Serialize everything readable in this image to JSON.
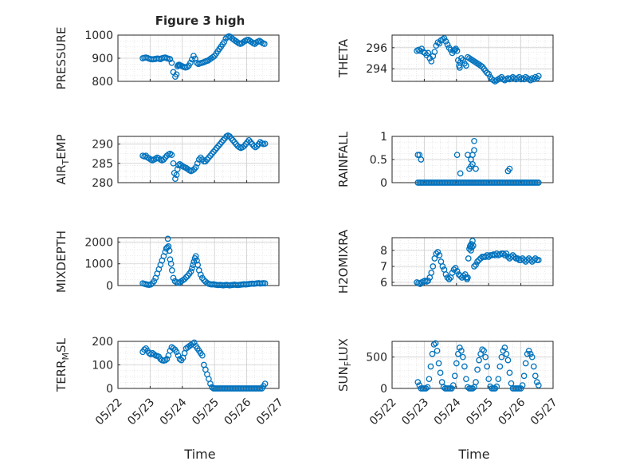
{
  "figure_title": "Figure 3 high",
  "x_label": "Time",
  "x_ticks": [
    "05/22",
    "05/23",
    "05/24",
    "05/25",
    "05/26",
    "05/27"
  ],
  "marker_color": "#0072BD",
  "chart_data": [
    {
      "type": "scatter",
      "id": "pressure",
      "ylabel": "PRESSURE",
      "ylim": [
        800,
        1000
      ],
      "yticks": [
        "800",
        "900",
        "1000"
      ],
      "grid": true,
      "x": [
        0.77,
        0.82,
        0.87,
        0.92,
        0.97,
        1.02,
        1.07,
        1.12,
        1.17,
        1.22,
        1.27,
        1.32,
        1.37,
        1.42,
        1.47,
        1.52,
        1.57,
        1.62,
        1.67,
        1.72,
        1.78,
        1.82,
        1.85,
        1.87,
        1.9,
        1.92,
        1.95,
        2.0,
        2.05,
        2.1,
        2.15,
        2.2,
        2.25,
        2.3,
        2.35,
        2.4,
        2.45,
        2.5,
        2.55,
        2.6,
        2.65,
        2.7,
        2.75,
        2.8,
        2.85,
        2.9,
        2.95,
        3.0,
        3.05,
        3.1,
        3.15,
        3.2,
        3.25,
        3.3,
        3.35,
        3.4,
        3.45,
        3.5,
        3.55,
        3.6,
        3.65,
        3.7,
        3.75,
        3.8,
        3.85,
        3.9,
        3.95,
        4.0,
        4.05,
        4.1,
        4.15,
        4.2,
        4.25,
        4.3,
        4.35,
        4.4,
        4.45,
        4.5,
        4.55
      ],
      "y": [
        900,
        902,
        903,
        901,
        898,
        896,
        895,
        896,
        897,
        899,
        898,
        896,
        900,
        902,
        903,
        900,
        898,
        896,
        880,
        840,
        820,
        830,
        865,
        870,
        872,
        870,
        868,
        865,
        862,
        860,
        862,
        868,
        880,
        895,
        910,
        898,
        880,
        875,
        878,
        880,
        882,
        885,
        888,
        890,
        895,
        900,
        905,
        910,
        920,
        930,
        940,
        950,
        960,
        970,
        985,
        992,
        995,
        992,
        985,
        980,
        975,
        970,
        965,
        962,
        965,
        970,
        975,
        978,
        980,
        975,
        970,
        965,
        962,
        968,
        972,
        975,
        970,
        965,
        962
      ]
    },
    {
      "type": "scatter",
      "id": "theta",
      "ylabel": "THETA",
      "ylim": [
        292.8,
        297.2
      ],
      "yticks": [
        "294",
        "296"
      ],
      "grid": true,
      "x": [
        0.77,
        0.82,
        0.87,
        0.92,
        0.97,
        1.02,
        1.07,
        1.12,
        1.17,
        1.22,
        1.27,
        1.32,
        1.37,
        1.42,
        1.47,
        1.52,
        1.57,
        1.62,
        1.67,
        1.72,
        1.77,
        1.82,
        1.87,
        1.92,
        1.95,
        1.98,
        2.02,
        2.05,
        2.08,
        2.1,
        2.12,
        2.15,
        2.2,
        2.25,
        2.3,
        2.35,
        2.4,
        2.45,
        2.5,
        2.55,
        2.6,
        2.65,
        2.7,
        2.75,
        2.8,
        2.85,
        2.9,
        2.95,
        3.0,
        3.05,
        3.1,
        3.15,
        3.2,
        3.25,
        3.3,
        3.35,
        3.4,
        3.45,
        3.5,
        3.55,
        3.6,
        3.65,
        3.7,
        3.75,
        3.8,
        3.85,
        3.9,
        3.95,
        4.0,
        4.05,
        4.1,
        4.15,
        4.2,
        4.25,
        4.3,
        4.35,
        4.4,
        4.45,
        4.5,
        4.55
      ],
      "y": [
        295.7,
        295.8,
        295.7,
        295.9,
        295.6,
        295.5,
        295.3,
        295.5,
        295.0,
        294.7,
        295.2,
        295.6,
        296.2,
        296.5,
        296.4,
        296.7,
        296.8,
        296.9,
        296.6,
        296.3,
        296.0,
        295.8,
        295.5,
        295.7,
        295.8,
        295.9,
        295.7,
        294.8,
        294.3,
        294.1,
        294.6,
        295.0,
        294.8,
        294.5,
        294.3,
        295.1,
        295.0,
        294.9,
        294.8,
        294.7,
        294.6,
        294.5,
        294.4,
        294.3,
        294.2,
        294.0,
        293.8,
        293.6,
        293.5,
        293.2,
        293.0,
        292.9,
        292.8,
        292.9,
        293.0,
        293.1,
        293.2,
        293.0,
        292.9,
        293.0,
        293.1,
        293.0,
        293.1,
        293.2,
        293.1,
        293.0,
        293.1,
        293.2,
        293.0,
        293.1,
        293.0,
        293.2,
        293.1,
        293.0,
        292.9,
        293.1,
        293.0,
        293.2,
        293.1,
        293.3
      ]
    },
    {
      "type": "scatter",
      "id": "air_temp",
      "ylabel_main": "AIR",
      "ylabel_sub": "T",
      "ylabel_rest": "EMP",
      "ylim": [
        280,
        292
      ],
      "yticks": [
        "280",
        "285",
        "290"
      ],
      "grid": true,
      "x": [
        0.77,
        0.82,
        0.87,
        0.92,
        0.97,
        1.02,
        1.07,
        1.12,
        1.17,
        1.22,
        1.27,
        1.32,
        1.37,
        1.42,
        1.47,
        1.52,
        1.57,
        1.62,
        1.67,
        1.72,
        1.75,
        1.78,
        1.82,
        1.85,
        1.88,
        1.92,
        1.97,
        2.02,
        2.07,
        2.12,
        2.17,
        2.22,
        2.27,
        2.32,
        2.37,
        2.42,
        2.47,
        2.52,
        2.57,
        2.62,
        2.67,
        2.72,
        2.77,
        2.82,
        2.87,
        2.92,
        2.97,
        3.02,
        3.07,
        3.12,
        3.17,
        3.22,
        3.27,
        3.32,
        3.37,
        3.42,
        3.47,
        3.52,
        3.57,
        3.62,
        3.67,
        3.72,
        3.77,
        3.82,
        3.87,
        3.92,
        3.97,
        4.02,
        4.07,
        4.12,
        4.17,
        4.22,
        4.27,
        4.32,
        4.37,
        4.42,
        4.47,
        4.52,
        4.57
      ],
      "y": [
        287,
        286.8,
        287,
        286.5,
        286.3,
        286,
        285.8,
        286,
        286.2,
        286.5,
        286.3,
        286,
        285.8,
        286,
        286.5,
        287,
        287.3,
        287.5,
        287.2,
        285,
        282.5,
        281,
        282,
        283.5,
        284.5,
        284.8,
        284.5,
        284.2,
        284,
        283.8,
        283.5,
        283.2,
        283,
        283.2,
        283.5,
        284,
        285,
        286,
        286.5,
        286,
        285.5,
        285.5,
        286,
        286.5,
        287,
        287.5,
        288,
        288.5,
        289,
        289.5,
        290,
        290.5,
        291,
        291.5,
        292,
        292.2,
        292,
        291.5,
        291,
        290.5,
        290,
        289.5,
        289.2,
        289,
        289.2,
        289.5,
        290,
        290.5,
        291,
        290.5,
        290,
        289.5,
        289.2,
        289.5,
        290,
        290.5,
        290.2,
        290,
        290.1
      ]
    },
    {
      "type": "scatter",
      "id": "rainfall",
      "ylabel": "RAINFALL",
      "ylim": [
        0,
        1
      ],
      "yticks": [
        "0",
        "0.5",
        "1"
      ],
      "grid": true,
      "x": [
        0.8,
        0.85,
        0.9,
        0.95,
        1.0,
        1.05,
        1.1,
        1.15,
        1.2,
        1.25,
        1.3,
        1.35,
        1.4,
        1.45,
        1.5,
        1.55,
        1.6,
        1.65,
        1.7,
        1.75,
        1.8,
        1.85,
        1.9,
        1.95,
        2.0,
        2.05,
        2.1,
        2.15,
        2.2,
        2.25,
        2.3,
        2.35,
        2.4,
        2.45,
        2.5,
        2.55,
        2.6,
        2.65,
        2.7,
        2.75,
        2.8,
        2.85,
        2.9,
        2.95,
        3.0,
        3.05,
        3.1,
        3.15,
        3.2,
        3.25,
        3.3,
        3.35,
        3.4,
        3.45,
        3.5,
        3.55,
        3.6,
        3.65,
        3.7,
        3.75,
        3.8,
        3.85,
        3.9,
        3.95,
        4.0,
        4.05,
        4.1,
        4.15,
        4.2,
        4.25,
        4.3,
        4.35,
        4.4,
        4.45,
        4.5,
        4.55,
        0.8,
        0.85,
        0.9,
        2.02,
        2.12,
        2.35,
        2.4,
        2.45,
        2.45,
        2.5,
        2.5,
        2.55,
        2.55,
        2.6,
        3.6,
        3.65
      ],
      "y": [
        0,
        0,
        0,
        0,
        0,
        0,
        0,
        0,
        0,
        0,
        0,
        0,
        0,
        0,
        0,
        0,
        0,
        0,
        0,
        0,
        0,
        0,
        0,
        0,
        0,
        0,
        0,
        0,
        0,
        0,
        0,
        0,
        0,
        0,
        0,
        0,
        0,
        0,
        0,
        0,
        0,
        0,
        0,
        0,
        0,
        0,
        0,
        0,
        0,
        0,
        0,
        0,
        0,
        0,
        0,
        0,
        0,
        0,
        0,
        0,
        0,
        0,
        0,
        0,
        0,
        0,
        0,
        0,
        0,
        0,
        0,
        0,
        0,
        0,
        0,
        0,
        0.6,
        0.6,
        0.5,
        0.6,
        0.2,
        0.6,
        0.3,
        0.35,
        0.5,
        0.6,
        0.4,
        0.9,
        0.7,
        0.3,
        0.25,
        0.3
      ]
    },
    {
      "type": "scatter",
      "id": "mixdepth",
      "ylabel": "MIXDEPTH",
      "ylim": [
        0,
        2200
      ],
      "yticks": [
        "0",
        "1000",
        "2000"
      ],
      "grid": true,
      "x": [
        0.77,
        0.82,
        0.87,
        0.92,
        0.97,
        1.02,
        1.07,
        1.12,
        1.17,
        1.22,
        1.27,
        1.32,
        1.37,
        1.42,
        1.47,
        1.5,
        1.53,
        1.55,
        1.57,
        1.6,
        1.62,
        1.65,
        1.68,
        1.72,
        1.77,
        1.82,
        1.87,
        1.92,
        1.97,
        2.02,
        2.07,
        2.12,
        2.17,
        2.22,
        2.27,
        2.3,
        2.33,
        2.36,
        2.39,
        2.42,
        2.45,
        2.48,
        2.52,
        2.57,
        2.62,
        2.67,
        2.72,
        2.77,
        2.82,
        2.87,
        2.92,
        2.97,
        3.02,
        3.07,
        3.12,
        3.17,
        3.22,
        3.27,
        3.32,
        3.37,
        3.42,
        3.47,
        3.52,
        3.57,
        3.62,
        3.67,
        3.72,
        3.77,
        3.82,
        3.87,
        3.92,
        3.97,
        4.02,
        4.07,
        4.12,
        4.17,
        4.22,
        4.27,
        4.32,
        4.37,
        4.42,
        4.47,
        4.52,
        4.57
      ],
      "y": [
        100,
        80,
        60,
        40,
        30,
        50,
        100,
        200,
        350,
        550,
        750,
        950,
        1150,
        1350,
        1550,
        1700,
        1750,
        2150,
        1800,
        1600,
        1200,
        1000,
        700,
        350,
        200,
        150,
        120,
        150,
        200,
        250,
        300,
        380,
        450,
        550,
        650,
        800,
        950,
        1100,
        1250,
        1350,
        1150,
        950,
        700,
        500,
        350,
        250,
        180,
        120,
        80,
        60,
        50,
        60,
        40,
        30,
        20,
        30,
        20,
        10,
        20,
        30,
        20,
        10,
        20,
        30,
        40,
        30,
        20,
        30,
        40,
        50,
        60,
        50,
        60,
        70,
        80,
        90,
        80,
        90,
        100,
        110,
        90,
        100,
        110,
        100
      ]
    },
    {
      "type": "scatter",
      "id": "h2omixra",
      "ylabel": "H2OMIXRA",
      "ylim": [
        5.8,
        8.8
      ],
      "yticks": [
        "6",
        "7",
        "8"
      ],
      "grid": true,
      "x": [
        0.77,
        0.82,
        0.87,
        0.92,
        0.97,
        1.02,
        1.07,
        1.12,
        1.17,
        1.22,
        1.27,
        1.32,
        1.37,
        1.42,
        1.47,
        1.52,
        1.57,
        1.62,
        1.67,
        1.72,
        1.77,
        1.82,
        1.87,
        1.92,
        1.97,
        2.02,
        2.07,
        2.12,
        2.17,
        2.22,
        2.27,
        2.3,
        2.33,
        2.35,
        2.37,
        2.4,
        2.43,
        2.46,
        2.5,
        2.55,
        2.6,
        2.65,
        2.7,
        2.75,
        2.8,
        2.85,
        2.9,
        2.95,
        3.0,
        3.05,
        3.1,
        3.15,
        3.2,
        3.25,
        3.3,
        3.35,
        3.4,
        3.45,
        3.5,
        3.55,
        3.6,
        3.65,
        3.7,
        3.75,
        3.8,
        3.85,
        3.9,
        3.95,
        4.0,
        4.05,
        4.1,
        4.15,
        4.2,
        4.25,
        4.3,
        4.35,
        4.4,
        4.45,
        4.5,
        4.55,
        2.48,
        2.52,
        2.42,
        2.45
      ],
      "y": [
        6.0,
        5.95,
        5.9,
        6.0,
        6.05,
        6.1,
        6.05,
        6.1,
        6.3,
        6.6,
        7.0,
        7.5,
        7.8,
        7.9,
        7.7,
        7.3,
        7.0,
        6.8,
        6.5,
        6.3,
        6.2,
        6.3,
        6.6,
        6.8,
        6.9,
        6.7,
        6.5,
        6.4,
        6.3,
        6.4,
        6.5,
        6.3,
        6.2,
        6.3,
        7.5,
        8.1,
        8.3,
        8.4,
        8.6,
        7.0,
        7.1,
        7.3,
        7.4,
        7.5,
        7.6,
        7.6,
        7.6,
        7.7,
        7.6,
        7.7,
        7.7,
        7.75,
        7.7,
        7.8,
        7.7,
        7.75,
        7.8,
        7.8,
        7.7,
        7.8,
        7.6,
        7.5,
        7.6,
        7.7,
        7.6,
        7.5,
        7.5,
        7.4,
        7.4,
        7.5,
        7.4,
        7.3,
        7.4,
        7.5,
        7.4,
        7.3,
        7.4,
        7.5,
        7.4,
        7.4,
        8.2,
        8.3,
        8.25,
        8.0
      ]
    },
    {
      "type": "scatter",
      "id": "terr_msl",
      "ylabel_main": "TERR",
      "ylabel_sub": "M",
      "ylabel_rest": "SL",
      "ylim": [
        0,
        200
      ],
      "yticks": [
        "0",
        "100",
        "200"
      ],
      "grid": true,
      "x": [
        0.77,
        0.82,
        0.87,
        0.92,
        0.97,
        1.02,
        1.07,
        1.12,
        1.17,
        1.22,
        1.27,
        1.32,
        1.37,
        1.42,
        1.47,
        1.52,
        1.57,
        1.62,
        1.67,
        1.72,
        1.77,
        1.82,
        1.87,
        1.92,
        1.97,
        2.02,
        2.07,
        2.12,
        2.17,
        2.22,
        2.27,
        2.32,
        2.37,
        2.42,
        2.47,
        2.52,
        2.57,
        2.62,
        2.67,
        2.72,
        2.77,
        2.82,
        2.87,
        2.92,
        2.97,
        3.02,
        3.07,
        3.12,
        3.17,
        3.22,
        3.27,
        3.32,
        3.37,
        3.42,
        3.47,
        3.52,
        3.57,
        3.62,
        3.67,
        3.72,
        3.77,
        3.82,
        3.87,
        3.92,
        3.97,
        4.02,
        4.07,
        4.12,
        4.17,
        4.22,
        4.27,
        4.32,
        4.37,
        4.42,
        4.47,
        4.52,
        4.57
      ],
      "y": [
        155,
        165,
        170,
        160,
        150,
        145,
        150,
        145,
        140,
        138,
        135,
        125,
        120,
        118,
        120,
        125,
        140,
        160,
        175,
        170,
        165,
        155,
        140,
        125,
        120,
        130,
        150,
        170,
        175,
        180,
        185,
        190,
        195,
        180,
        170,
        160,
        150,
        140,
        100,
        80,
        60,
        40,
        20,
        5,
        0,
        0,
        0,
        0,
        0,
        0,
        0,
        0,
        0,
        0,
        0,
        0,
        0,
        0,
        0,
        0,
        0,
        0,
        0,
        0,
        0,
        0,
        0,
        0,
        0,
        0,
        0,
        0,
        0,
        0,
        0,
        10,
        20
      ]
    },
    {
      "type": "scatter",
      "id": "sun_flux",
      "ylabel_main": "SUN",
      "ylabel_sub": "F",
      "ylabel_rest": "LUX",
      "ylim": [
        0,
        750
      ],
      "yticks": [
        "0",
        "500"
      ],
      "grid": true,
      "x": [
        0.8,
        0.85,
        0.9,
        0.95,
        1.0,
        1.05,
        1.1,
        1.15,
        1.2,
        1.25,
        1.3,
        1.35,
        1.4,
        1.45,
        1.5,
        1.55,
        1.6,
        1.65,
        1.7,
        1.75,
        1.8,
        1.85,
        1.9,
        1.95,
        2.0,
        2.05,
        2.1,
        2.15,
        2.2,
        2.25,
        2.3,
        2.35,
        2.4,
        2.45,
        2.5,
        2.55,
        2.6,
        2.65,
        2.7,
        2.75,
        2.8,
        2.85,
        2.9,
        2.95,
        3.0,
        3.05,
        3.1,
        3.15,
        3.2,
        3.25,
        3.3,
        3.35,
        3.4,
        3.45,
        3.5,
        3.55,
        3.6,
        3.65,
        3.7,
        3.75,
        3.8,
        3.85,
        3.9,
        3.95,
        4.0,
        4.05,
        4.1,
        4.15,
        4.2,
        4.25,
        4.3,
        4.35,
        4.4,
        4.45,
        4.5,
        4.55
      ],
      "y": [
        100,
        50,
        0,
        0,
        0,
        0,
        20,
        150,
        350,
        550,
        700,
        720,
        600,
        400,
        250,
        100,
        20,
        0,
        0,
        0,
        0,
        0,
        50,
        200,
        400,
        550,
        650,
        600,
        500,
        350,
        150,
        20,
        0,
        0,
        0,
        20,
        100,
        300,
        450,
        550,
        620,
        600,
        500,
        350,
        150,
        30,
        0,
        0,
        0,
        30,
        150,
        350,
        500,
        600,
        650,
        550,
        450,
        250,
        80,
        0,
        0,
        0,
        0,
        0,
        0,
        50,
        200,
        400,
        550,
        600,
        550,
        500,
        350,
        200,
        100,
        50
      ]
    }
  ]
}
